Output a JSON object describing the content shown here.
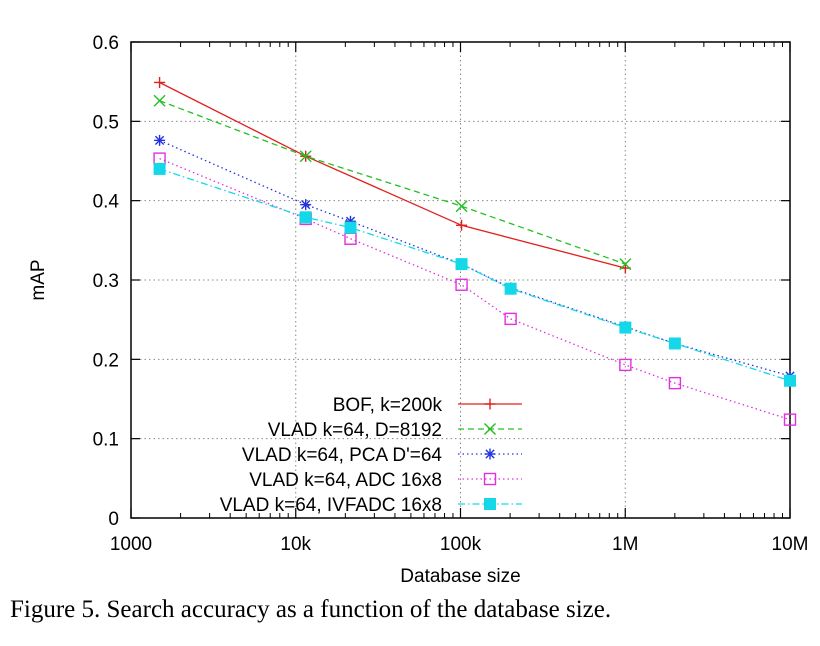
{
  "caption": "Figure 5. Search accuracy as a function of the database size.",
  "chart_data": {
    "type": "line",
    "xlabel": "Database size",
    "ylabel": "mAP",
    "xscale": "log",
    "xlim": [
      1000,
      10000000
    ],
    "ylim": [
      0,
      0.6
    ],
    "grid": true,
    "legend_position": "bottom-left",
    "x_ticks": [
      {
        "value": 1000,
        "label": "1000"
      },
      {
        "value": 10000,
        "label": "10k"
      },
      {
        "value": 100000,
        "label": "100k"
      },
      {
        "value": 1000000,
        "label": "1M"
      },
      {
        "value": 10000000,
        "label": "10M"
      }
    ],
    "y_ticks": [
      {
        "value": 0,
        "label": "0"
      },
      {
        "value": 0.1,
        "label": "0.1"
      },
      {
        "value": 0.2,
        "label": "0.2"
      },
      {
        "value": 0.3,
        "label": "0.3"
      },
      {
        "value": 0.4,
        "label": "0.4"
      },
      {
        "value": 0.5,
        "label": "0.5"
      },
      {
        "value": 0.6,
        "label": "0.6"
      }
    ],
    "series": [
      {
        "name": "BOF, k=200k",
        "color": "#e0201c",
        "dash": "solid",
        "marker": "plus",
        "points": [
          [
            1491,
            0.549
          ],
          [
            11491,
            0.456
          ],
          [
            101491,
            0.369
          ],
          [
            1001491,
            0.315
          ]
        ]
      },
      {
        "name": "VLAD k=64, D=8192",
        "color": "#22c022",
        "dash": "dashed",
        "marker": "x",
        "points": [
          [
            1491,
            0.526
          ],
          [
            11491,
            0.456
          ],
          [
            101491,
            0.393
          ],
          [
            1001491,
            0.32
          ]
        ]
      },
      {
        "name": "VLAD k=64, PCA D'=64",
        "color": "#2233dd",
        "dash": "dotted",
        "marker": "star",
        "points": [
          [
            1491,
            0.476
          ],
          [
            11491,
            0.395
          ],
          [
            21491,
            0.374
          ],
          [
            101491,
            0.32
          ],
          [
            201491,
            0.29
          ],
          [
            1001491,
            0.241
          ],
          [
            2001491,
            0.22
          ],
          [
            10001491,
            0.179
          ]
        ]
      },
      {
        "name": "VLAD k=64, ADC 16x8",
        "color": "#e030e0",
        "dash": "dotted",
        "marker": "open-square",
        "points": [
          [
            1491,
            0.453
          ],
          [
            11491,
            0.377
          ],
          [
            21491,
            0.352
          ],
          [
            101491,
            0.294
          ],
          [
            201491,
            0.251
          ],
          [
            1001491,
            0.193
          ],
          [
            2001491,
            0.17
          ],
          [
            10001491,
            0.124
          ]
        ]
      },
      {
        "name": "VLAD k=64, IVFADC 16x8",
        "color": "#14d8e8",
        "dash": "dashdot",
        "marker": "filled-square",
        "points": [
          [
            1491,
            0.44
          ],
          [
            11491,
            0.379
          ],
          [
            21491,
            0.366
          ],
          [
            101491,
            0.32
          ],
          [
            201491,
            0.289
          ],
          [
            1001491,
            0.24
          ],
          [
            2001491,
            0.22
          ],
          [
            10001491,
            0.173
          ]
        ]
      }
    ]
  }
}
